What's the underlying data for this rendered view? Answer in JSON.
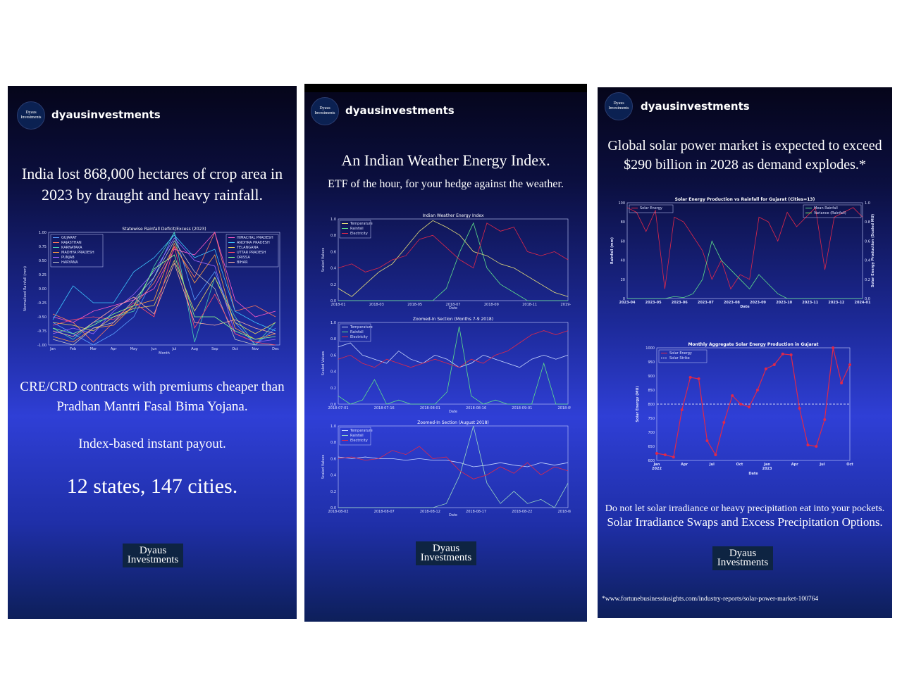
{
  "stories": [
    {
      "username": "dyausinvestments",
      "avatar_text": [
        "Dyaus",
        "Investments"
      ],
      "headline": "India lost 868,000 hectares of crop area in 2023 by draught and heavy rainfall.",
      "body1": "CRE/CRD contracts with premiums cheaper than Pradhan Mantri Fasal Bima Yojana.",
      "body2": "Index-based instant payout.",
      "body3": "12 states, 147 cities.",
      "logo": [
        "Dyaus",
        "Investments"
      ]
    },
    {
      "username": "dyausinvestments",
      "avatar_text": [
        "Dyaus",
        "Investments"
      ],
      "headline": "An Indian Weather Energy Index.",
      "subhead": "ETF of the hour, for your hedge against the weather.",
      "logo": [
        "Dyaus",
        "Investments"
      ]
    },
    {
      "username": "dyausinvestments",
      "avatar_text": [
        "Dyaus",
        "Investments"
      ],
      "headline": "Global solar power market is expected to exceed $290 billion in 2028 as demand explodes.*",
      "body1": "Do not let solar irradiance or heavy precipitation eat into your pockets.",
      "body2": "Solar Irradiance Swaps and Excess Precipitation Options.",
      "logo": [
        "Dyaus",
        "Investments"
      ],
      "footnote": "*www.fortunebusinessinsights.com/industry-reports/solar-power-market-100764"
    }
  ],
  "colors": {
    "panel_bg": "#1d2a9a",
    "red": "#e0284a",
    "yellow": "#e8e07a",
    "green": "#5fe08a",
    "white": "#ffffff"
  },
  "chart_data": [
    {
      "type": "line",
      "title": "Statewise Rainfall Deficit/Excess (2023)",
      "xlabel": "Month",
      "ylabel": "Normalized Rainfall (mm)",
      "ylim": [
        -1,
        1
      ],
      "yticks": [
        "1.00",
        "0.75",
        "0.50",
        "0.25",
        "0.00",
        "-0.25",
        "-0.50",
        "-0.75",
        "-1.00"
      ],
      "categories": [
        "Jan",
        "Feb",
        "Mar",
        "Apr",
        "May",
        "Jun",
        "Jul",
        "Aug",
        "Sep",
        "Oct",
        "Nov",
        "Dec"
      ],
      "legend_left": [
        "GUJARAT",
        "RAJASTHAN",
        "KARNATAKA",
        "MADHYA PRADESH",
        "PUNJAB",
        "HARYANA"
      ],
      "legend_right": [
        "HIMACHAL PRADESH",
        "ANDHRA PRADESH",
        "TELANGANA",
        "UTTAR PRADESH",
        "ORISSA",
        "BIHAR"
      ],
      "series": [
        {
          "name": "GUJARAT",
          "color": "#5aa0ff",
          "values": [
            -0.6,
            -0.8,
            -1.0,
            -0.8,
            -0.5,
            0.2,
            1.0,
            -0.2,
            0.3,
            -0.6,
            -1.0,
            -0.7
          ]
        },
        {
          "name": "RAJASTHAN",
          "color": "#ff7a5a",
          "values": [
            -0.45,
            -0.6,
            -0.95,
            -0.6,
            -0.3,
            0.1,
            0.75,
            0.2,
            1.0,
            -0.4,
            -0.3,
            -0.5
          ]
        },
        {
          "name": "KARNATAKA",
          "color": "#4ad0b0",
          "values": [
            -0.7,
            -0.9,
            -0.6,
            -0.5,
            -0.4,
            0.4,
            1.0,
            -0.95,
            0.2,
            -0.5,
            -1.0,
            -0.6
          ]
        },
        {
          "name": "MADHYA PRADESH",
          "color": "#ff9f40",
          "values": [
            -0.85,
            -0.95,
            -0.7,
            -0.65,
            -0.3,
            -0.2,
            0.8,
            0.1,
            0.6,
            -0.7,
            -0.9,
            -0.8
          ]
        },
        {
          "name": "PUNJAB",
          "color": "#a06aff",
          "values": [
            -0.8,
            -0.7,
            -0.8,
            -0.4,
            -0.1,
            0.3,
            0.9,
            0.5,
            0.4,
            -0.8,
            -0.95,
            -0.9
          ]
        },
        {
          "name": "HARYANA",
          "color": "#c0c0c0",
          "values": [
            -0.9,
            -1.0,
            -0.7,
            -0.6,
            -0.2,
            0.2,
            0.85,
            0.3,
            0.0,
            -0.9,
            -1.0,
            -1.0
          ]
        },
        {
          "name": "HIMACHAL PRADESH",
          "color": "#ff5ac8",
          "values": [
            -0.5,
            -0.6,
            -0.4,
            -0.3,
            -0.2,
            0.0,
            0.7,
            0.6,
            1.0,
            -0.2,
            -0.5,
            -0.4
          ]
        },
        {
          "name": "ANDHRA PRADESH",
          "color": "#3ec6ff",
          "values": [
            -0.55,
            0.05,
            -0.25,
            -0.25,
            0.3,
            0.55,
            0.95,
            0.55,
            0.7,
            -0.4,
            -0.6,
            -0.75
          ]
        },
        {
          "name": "TELANGANA",
          "color": "#e8d05a",
          "values": [
            -0.6,
            -0.65,
            -0.75,
            -0.5,
            -0.35,
            -0.3,
            0.5,
            -0.4,
            0.2,
            -0.6,
            -0.8,
            -0.6
          ]
        },
        {
          "name": "UTTAR PRADESH",
          "color": "#ff4a6a",
          "values": [
            -0.65,
            -0.55,
            -0.5,
            -0.55,
            -0.25,
            -0.5,
            0.75,
            -0.7,
            -0.1,
            -0.8,
            -0.95,
            -1.0
          ]
        },
        {
          "name": "ORISSA",
          "color": "#8aff8a",
          "values": [
            -0.7,
            -0.8,
            -0.65,
            -0.45,
            -0.3,
            0.35,
            0.6,
            -0.5,
            -0.5,
            -0.75,
            -0.9,
            -0.85
          ]
        },
        {
          "name": "BIHAR",
          "color": "#ffb0a0",
          "values": [
            -0.75,
            -0.85,
            -0.6,
            -0.35,
            -0.15,
            -0.45,
            0.45,
            -0.6,
            -0.65,
            -0.55,
            -0.7,
            -0.8
          ]
        }
      ]
    },
    {
      "type": "line",
      "title": "Indian Weather Energy Index",
      "xlabel": "Date",
      "ylabel": "Scaled Values",
      "ylim": [
        0,
        1
      ],
      "yticks": [
        "1.0",
        "0.8",
        "0.6",
        "0.4",
        "0.2",
        "0.0"
      ],
      "xticks": [
        "2018-01",
        "2018-03",
        "2018-05",
        "2018-07",
        "2018-09",
        "2018-11",
        "2019-01"
      ],
      "legend": [
        "Temperature",
        "Rainfall",
        "Electricity"
      ],
      "series": [
        {
          "name": "Temperature",
          "color": "#e8e07a",
          "values": [
            0.15,
            0.05,
            0.2,
            0.35,
            0.45,
            0.65,
            0.85,
            0.98,
            0.9,
            0.8,
            0.6,
            0.55,
            0.45,
            0.4,
            0.3,
            0.2,
            0.1,
            0.05
          ]
        },
        {
          "name": "Rainfall",
          "color": "#5fe08a",
          "values": [
            0,
            0,
            0,
            0,
            0,
            0,
            0,
            0,
            0.15,
            0.6,
            0.95,
            0.4,
            0.2,
            0.1,
            0,
            0,
            0,
            0
          ]
        },
        {
          "name": "Electricity",
          "color": "#e0284a",
          "values": [
            0.4,
            0.45,
            0.35,
            0.4,
            0.5,
            0.55,
            0.75,
            0.8,
            0.65,
            0.5,
            0.4,
            0.95,
            0.85,
            0.9,
            0.6,
            0.55,
            0.6,
            0.5
          ]
        }
      ]
    },
    {
      "type": "line",
      "title": "Zoomed-In Section (Months 7-9 2018)",
      "xlabel": "Date",
      "ylabel": "Scaled Values",
      "ylim": [
        0,
        1
      ],
      "yticks": [
        "1.0",
        "0.8",
        "0.6",
        "0.4",
        "0.2",
        "0.0"
      ],
      "xticks": [
        "2018-07-01",
        "2018-07-16",
        "2018-08-01",
        "2018-08-16",
        "2018-09-01",
        "2018-09-16"
      ],
      "legend": [
        "Temperature",
        "Rainfall",
        "Electricity"
      ],
      "series": [
        {
          "name": "Temperature",
          "color": "#c8d8ff",
          "values": [
            0.7,
            0.75,
            0.6,
            0.55,
            0.5,
            0.65,
            0.55,
            0.5,
            0.6,
            0.55,
            0.45,
            0.5,
            0.6,
            0.55,
            0.5,
            0.45,
            0.55,
            0.6,
            0.55,
            0.6
          ]
        },
        {
          "name": "Rainfall",
          "color": "#5fe08a",
          "values": [
            0.1,
            0.0,
            0.05,
            0.3,
            0.0,
            0.05,
            0.0,
            0.0,
            0.0,
            0.15,
            0.95,
            0.1,
            0.0,
            0.05,
            0.0,
            0.0,
            0.0,
            0.5,
            0.0,
            0.0
          ]
        },
        {
          "name": "Electricity",
          "color": "#e0284a",
          "values": [
            0.55,
            0.6,
            0.5,
            0.45,
            0.55,
            0.5,
            0.45,
            0.5,
            0.55,
            0.5,
            0.45,
            0.55,
            0.5,
            0.6,
            0.65,
            0.75,
            0.85,
            0.9,
            0.85,
            0.9
          ]
        }
      ]
    },
    {
      "type": "line",
      "title": "Zoomed-In Section (August 2018)",
      "xlabel": "Date",
      "ylabel": "Scaled Values",
      "ylim": [
        0,
        1
      ],
      "yticks": [
        "1.0",
        "0.8",
        "0.6",
        "0.4",
        "0.2",
        "0.0"
      ],
      "xticks": [
        "2018-08-02",
        "2018-08-07",
        "2018-08-12",
        "2018-08-17",
        "2018-08-22",
        "2018-08-27"
      ],
      "legend": [
        "Temperature",
        "Rainfall",
        "Electricity"
      ],
      "series": [
        {
          "name": "Temperature",
          "color": "#c8d8ff",
          "values": [
            0.62,
            0.6,
            0.62,
            0.6,
            0.6,
            0.58,
            0.6,
            0.58,
            0.58,
            0.55,
            0.5,
            0.52,
            0.55,
            0.52,
            0.5,
            0.55,
            0.52,
            0.55
          ]
        },
        {
          "name": "Rainfall",
          "color": "#9ad8c0",
          "values": [
            0,
            0,
            0,
            0,
            0,
            0,
            0,
            0,
            0.05,
            0.4,
            1.0,
            0.3,
            0.05,
            0.2,
            0.05,
            0.1,
            0.0,
            0.3
          ]
        },
        {
          "name": "Electricity",
          "color": "#e0284a",
          "values": [
            0.6,
            0.62,
            0.58,
            0.6,
            0.7,
            0.65,
            0.75,
            0.6,
            0.62,
            0.45,
            0.35,
            0.4,
            0.5,
            0.42,
            0.55,
            0.4,
            0.5,
            0.45
          ]
        }
      ]
    },
    {
      "type": "line",
      "title": "Solar Energy Production vs Rainfall for Gujarat (Cities=13)",
      "xlabel": "Date",
      "ylabel": "Rainfall (mm)",
      "ylabel_right": "Solar Energy Production (Scaled MU)",
      "ylim": [
        0,
        100
      ],
      "yticks": [
        "100",
        "80",
        "60",
        "40",
        "20",
        "0"
      ],
      "yticks_right": [
        "1.0",
        "0.8",
        "0.6",
        "0.4",
        "0.2",
        "0.0"
      ],
      "xticks": [
        "2023-04",
        "2023-05",
        "2023-06",
        "2023-07",
        "2023-08",
        "2023-09",
        "2023-10",
        "2023-11",
        "2023-12",
        "2024-01"
      ],
      "legend_left": [
        "Solar Energy"
      ],
      "legend_right": [
        "Mean Rainfall",
        "Variance (Rainfall)"
      ],
      "series": [
        {
          "name": "Solar Energy",
          "color": "#e0284a",
          "values": [
            95,
            90,
            70,
            92,
            10,
            85,
            80,
            65,
            50,
            20,
            40,
            10,
            25,
            20,
            85,
            80,
            60,
            90,
            75,
            85,
            95,
            30,
            85,
            90,
            95,
            85
          ]
        },
        {
          "name": "Mean Rainfall",
          "color": "#5fe08a",
          "values": [
            0,
            0,
            0,
            0,
            0,
            2,
            1,
            5,
            20,
            60,
            40,
            30,
            20,
            10,
            25,
            15,
            5,
            0,
            0,
            0,
            0,
            0,
            0,
            0,
            0,
            0
          ]
        }
      ]
    },
    {
      "type": "line",
      "title": "Monthly Aggregate Solar Energy Production in Gujarat",
      "xlabel": "Date",
      "ylabel": "Solar Energy (MU)",
      "ylim": [
        600,
        1000
      ],
      "yticks": [
        "1000",
        "950",
        "900",
        "850",
        "800",
        "750",
        "700",
        "650",
        "600"
      ],
      "xticks": [
        "Jan\n2022",
        "Apr",
        "Jul",
        "Oct",
        "Jan\n2023",
        "Apr",
        "Jul",
        "Oct"
      ],
      "legend": [
        "Solar Energy",
        "Solar Strike"
      ],
      "strike": 800,
      "series": [
        {
          "name": "Solar Energy",
          "color": "#e0284a",
          "values": [
            625,
            620,
            612,
            780,
            895,
            890,
            670,
            620,
            735,
            830,
            800,
            790,
            850,
            925,
            940,
            978,
            975,
            785,
            655,
            650,
            745,
            1000,
            875,
            940
          ]
        }
      ]
    }
  ]
}
